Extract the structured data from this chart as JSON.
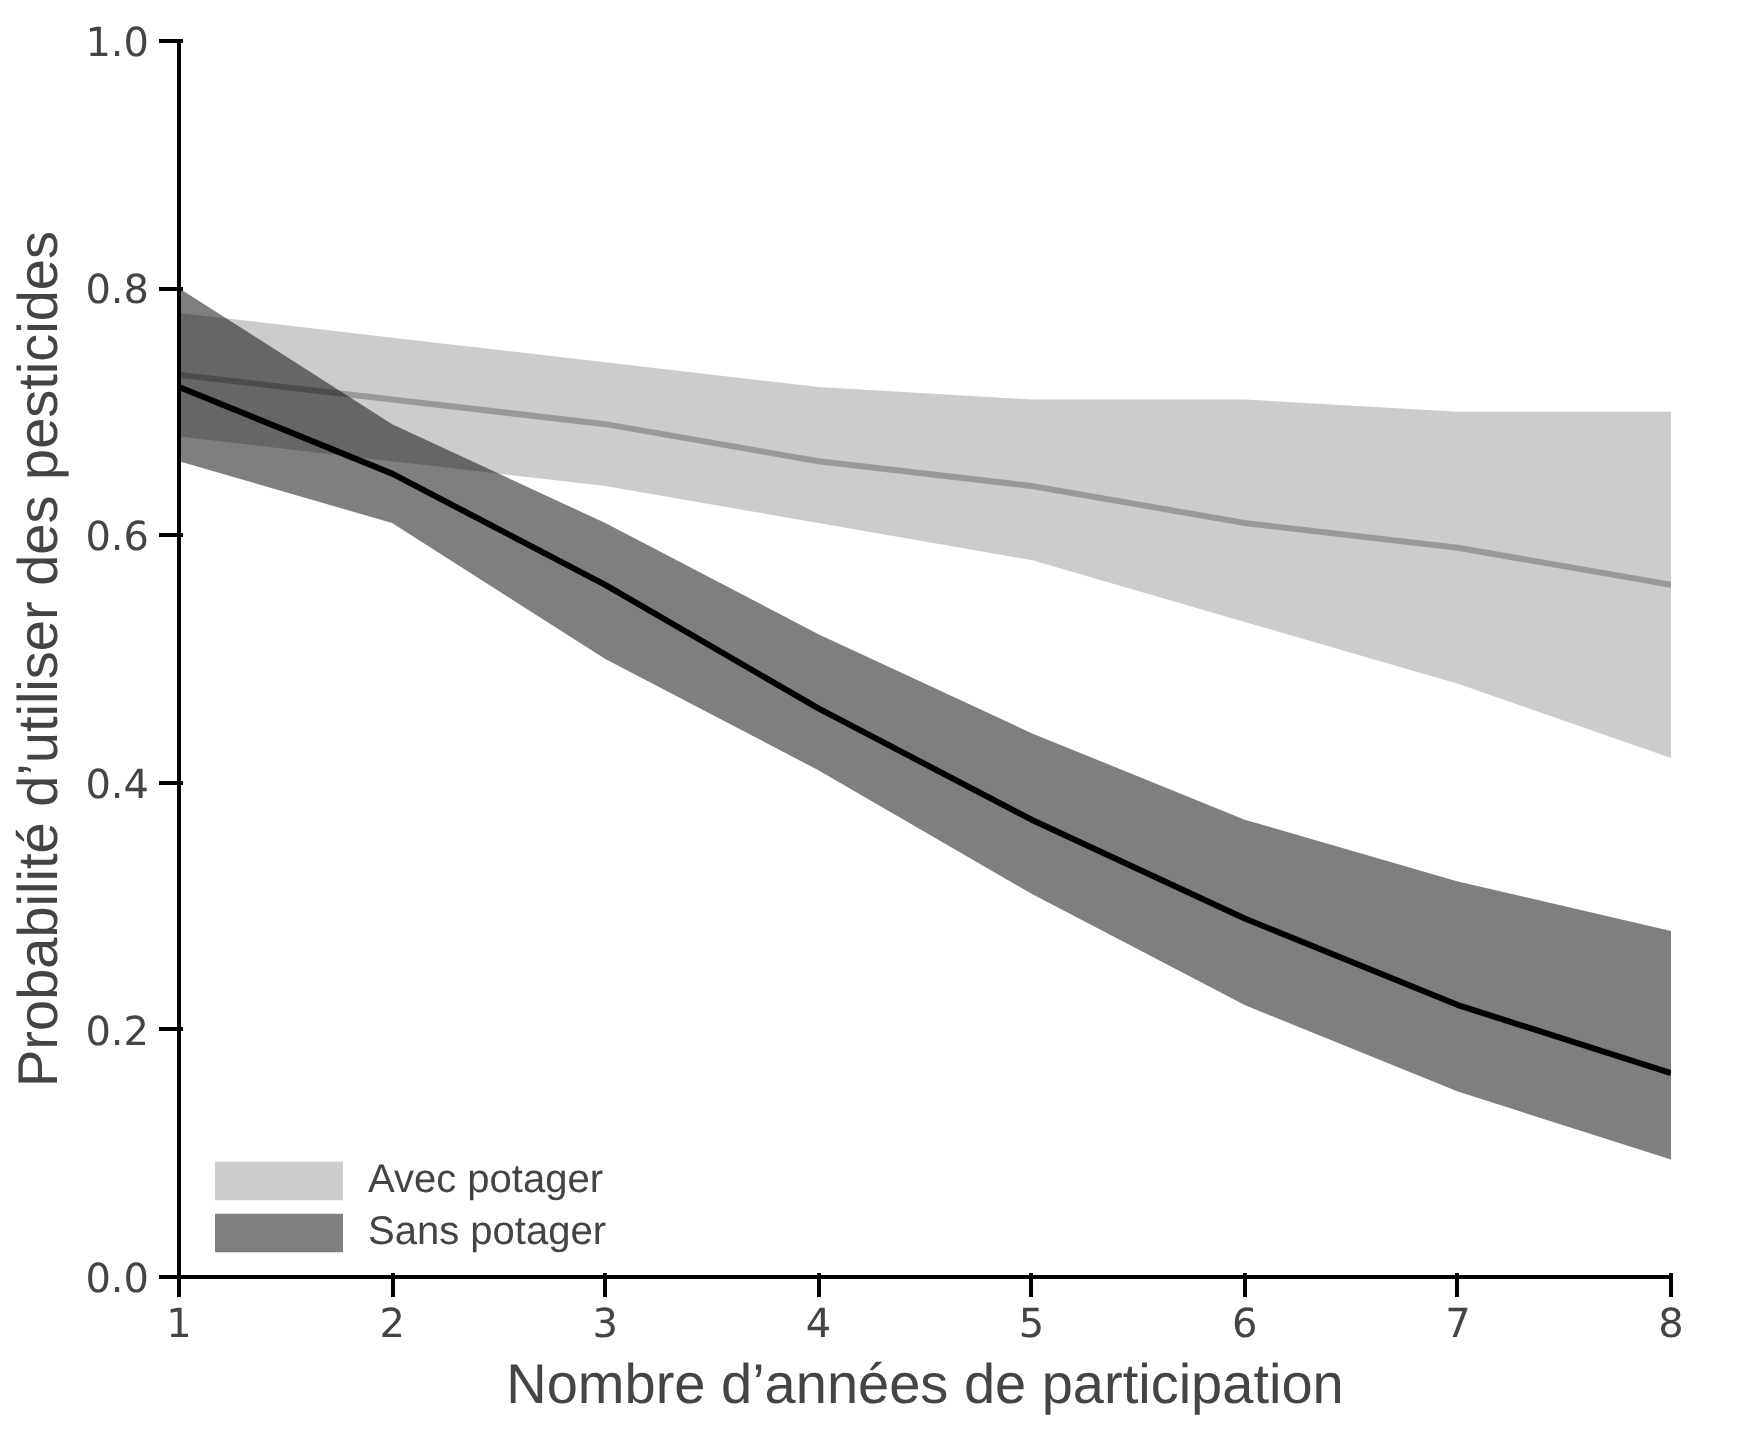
{
  "chart_data": {
    "type": "line",
    "xlabel": "Nombre d’années de participation",
    "ylabel": "Probabilité d’utiliser des pesticides",
    "x": [
      1,
      2,
      3,
      4,
      5,
      6,
      7,
      8
    ],
    "series": [
      {
        "name": "Avec potager",
        "color": "#999999",
        "values": [
          0.73,
          0.71,
          0.69,
          0.66,
          0.64,
          0.61,
          0.59,
          0.56
        ],
        "lower": [
          0.68,
          0.66,
          0.64,
          0.61,
          0.58,
          0.53,
          0.48,
          0.42
        ],
        "upper": [
          0.78,
          0.76,
          0.74,
          0.72,
          0.71,
          0.71,
          0.7,
          0.7
        ]
      },
      {
        "name": "Sans potager",
        "color": "#000000",
        "values": [
          0.72,
          0.65,
          0.56,
          0.46,
          0.37,
          0.29,
          0.22,
          0.165
        ],
        "lower": [
          0.66,
          0.61,
          0.5,
          0.41,
          0.31,
          0.22,
          0.15,
          0.095
        ],
        "upper": [
          0.8,
          0.69,
          0.61,
          0.52,
          0.44,
          0.37,
          0.32,
          0.28
        ]
      }
    ],
    "xlim": [
      1,
      8
    ],
    "xticks": [
      1,
      2,
      3,
      4,
      5,
      6,
      7,
      8
    ],
    "ylim": [
      0,
      1
    ],
    "yticks": [
      {
        "value": 0,
        "label": "0.0"
      },
      {
        "value": 0.2,
        "label": "0.2"
      },
      {
        "value": 0.4,
        "label": "0.4"
      },
      {
        "value": 0.6,
        "label": "0.6"
      },
      {
        "value": 0.8,
        "label": "0.8"
      },
      {
        "value": 1,
        "label": "1.0"
      }
    ],
    "grid": false,
    "legend": "bottom left",
    "marker": "none",
    "line_style": "solid"
  }
}
